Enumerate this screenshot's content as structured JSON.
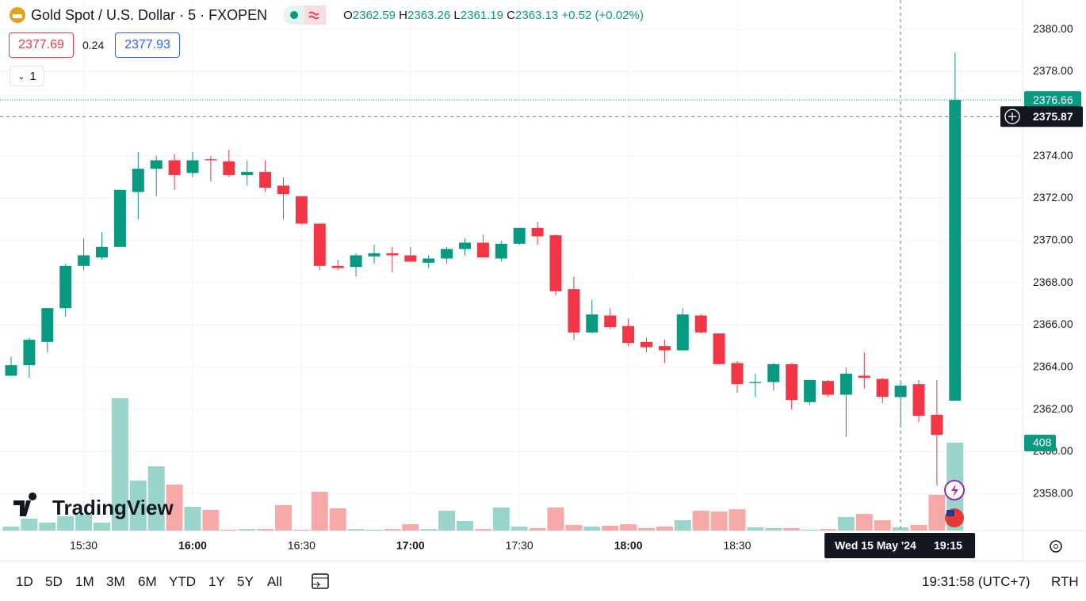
{
  "header": {
    "title": "Gold Spot / U.S. Dollar · 5 · FXOPEN",
    "legend": {
      "o": "O",
      "h": "H",
      "l": "L",
      "c": "C"
    },
    "change": "+0.52 (+0.02%)",
    "sell": 2377.69,
    "spread": 0.24,
    "buy": 2377.93,
    "indicators_toggle": "1",
    "watermark": "TradingView"
  },
  "chart_data": {
    "type": "candlestick",
    "x": [
      "15:10",
      "15:15",
      "15:20",
      "15:25",
      "15:30",
      "15:35",
      "15:40",
      "15:45",
      "15:50",
      "15:55",
      "16:00",
      "16:05",
      "16:10",
      "16:15",
      "16:20",
      "16:25",
      "16:30",
      "16:35",
      "16:40",
      "16:45",
      "16:50",
      "16:55",
      "17:00",
      "17:05",
      "17:10",
      "17:15",
      "17:20",
      "17:25",
      "17:30",
      "17:35",
      "17:40",
      "17:45",
      "17:50",
      "17:55",
      "18:00",
      "18:05",
      "18:10",
      "18:15",
      "18:20",
      "18:25",
      "18:30",
      "18:35",
      "18:40",
      "18:45",
      "18:50",
      "18:55",
      "19:00",
      "19:05",
      "19:10",
      "19:15",
      "19:20",
      "19:25",
      "19:30"
    ],
    "open": [
      2363.6,
      2364.1,
      2365.2,
      2366.8,
      2368.8,
      2369.2,
      2369.7,
      2372.3,
      2373.4,
      2373.8,
      2373.2,
      2373.85,
      2373.75,
      2373.1,
      2373.25,
      2372.6,
      2372.1,
      2370.8,
      2368.8,
      2368.75,
      2369.25,
      2369.4,
      2369.3,
      2368.95,
      2369.15,
      2369.6,
      2369.9,
      2369.15,
      2369.85,
      2370.6,
      2370.25,
      2367.7,
      2365.65,
      2366.45,
      2365.95,
      2365.2,
      2365.0,
      2364.8,
      2366.45,
      2365.6,
      2364.2,
      2363.25,
      2363.3,
      2364.15,
      2362.35,
      2363.35,
      2362.7,
      2363.6,
      2363.45,
      2362.59,
      2363.2,
      2361.75,
      2362.42
    ],
    "high": [
      2364.5,
      2365.4,
      2366.8,
      2368.9,
      2370.1,
      2370.4,
      2372.4,
      2374.2,
      2374.0,
      2374.1,
      2374.2,
      2374.0,
      2374.3,
      2373.8,
      2373.8,
      2373.0,
      2372.1,
      2370.8,
      2369.1,
      2369.4,
      2369.8,
      2369.7,
      2369.7,
      2369.3,
      2369.7,
      2370.1,
      2370.3,
      2370.0,
      2370.6,
      2370.9,
      2370.3,
      2368.3,
      2367.2,
      2366.8,
      2366.3,
      2365.4,
      2365.3,
      2366.8,
      2366.5,
      2365.6,
      2364.3,
      2363.7,
      2364.2,
      2364.2,
      2363.4,
      2363.4,
      2364.0,
      2364.7,
      2363.5,
      2363.26,
      2363.4,
      2363.4,
      2378.9
    ],
    "low": [
      2363.6,
      2363.5,
      2364.7,
      2366.4,
      2368.6,
      2369.1,
      2369.7,
      2371.0,
      2372.1,
      2372.4,
      2373.0,
      2372.8,
      2373.0,
      2372.6,
      2372.3,
      2371.0,
      2370.75,
      2368.6,
      2368.6,
      2368.3,
      2368.9,
      2368.5,
      2369.0,
      2368.7,
      2368.9,
      2369.3,
      2369.2,
      2369.0,
      2369.8,
      2369.8,
      2367.4,
      2365.3,
      2365.6,
      2365.8,
      2365.0,
      2364.7,
      2364.2,
      2364.8,
      2365.6,
      2364.1,
      2362.8,
      2362.6,
      2362.9,
      2362.0,
      2362.2,
      2362.6,
      2360.7,
      2363.0,
      2362.3,
      2361.19,
      2361.4,
      2358.4,
      2362.4
    ],
    "close": [
      2364.1,
      2365.3,
      2366.8,
      2368.8,
      2369.3,
      2369.7,
      2372.4,
      2373.4,
      2373.8,
      2373.1,
      2373.8,
      2373.8,
      2373.1,
      2373.25,
      2372.5,
      2372.2,
      2370.8,
      2368.8,
      2368.7,
      2369.3,
      2369.4,
      2369.3,
      2369.0,
      2369.15,
      2369.6,
      2369.9,
      2369.2,
      2369.85,
      2370.6,
      2370.2,
      2367.6,
      2365.65,
      2366.5,
      2365.9,
      2365.15,
      2364.95,
      2364.8,
      2366.5,
      2365.65,
      2364.15,
      2363.2,
      2363.3,
      2364.15,
      2362.45,
      2363.4,
      2362.7,
      2363.7,
      2363.5,
      2362.6,
      2363.13,
      2361.7,
      2360.8,
      2376.66
    ],
    "volume": [
      18,
      55,
      37,
      66,
      74,
      37,
      614,
      232,
      298,
      213,
      110,
      96,
      4,
      7,
      7,
      118,
      4,
      180,
      103,
      7,
      4,
      7,
      29,
      7,
      92,
      44,
      7,
      107,
      18,
      11,
      107,
      26,
      18,
      22,
      29,
      11,
      18,
      48,
      92,
      88,
      99,
      15,
      11,
      11,
      4,
      7,
      63,
      77,
      48,
      15,
      26,
      166,
      408
    ],
    "ylim": [
      2356.27,
      2381.39
    ],
    "yticks": [
      {
        "value": 2358,
        "label": "2358.00"
      },
      {
        "value": 2360,
        "label": "2360.00"
      },
      {
        "value": 2362,
        "label": "2362.00"
      },
      {
        "value": 2364,
        "label": "2364.00"
      },
      {
        "value": 2366,
        "label": "2366.00"
      },
      {
        "value": 2368,
        "label": "2368.00"
      },
      {
        "value": 2370,
        "label": "2370.00"
      },
      {
        "value": 2372,
        "label": "2372.00"
      },
      {
        "value": 2374,
        "label": "2374.00"
      },
      {
        "value": 2376,
        "label": "2376.00"
      },
      {
        "value": 2378,
        "label": "2378.00"
      },
      {
        "value": 2380,
        "label": "2380.00"
      }
    ],
    "up_color": "#089981",
    "down_color": "#f23645",
    "volume_up_color": "#9ad5cb",
    "volume_down_color": "#f7a9a7",
    "grid": true,
    "crosshair": {
      "date": "Wed 15 May '24",
      "index": 49,
      "price": 2375.87
    }
  },
  "toolbar": {
    "ranges": [
      "1D",
      "5D",
      "1M",
      "3M",
      "6M",
      "YTD",
      "1Y",
      "5Y",
      "All"
    ],
    "clock": "19:31:58 (UTC+7)",
    "session": "RTH"
  }
}
